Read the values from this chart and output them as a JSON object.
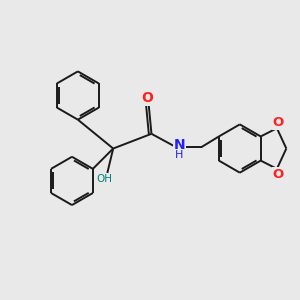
{
  "bg_color": "#e9e9e9",
  "bond_color": "#1a1a1a",
  "n_color": "#2020ff",
  "o_color": "#ff2020",
  "oh_color": "#008080",
  "lw": 1.4,
  "figsize": [
    3.0,
    3.0
  ],
  "dpi": 100,
  "xlim": [
    0,
    10
  ],
  "ylim": [
    0,
    10
  ]
}
